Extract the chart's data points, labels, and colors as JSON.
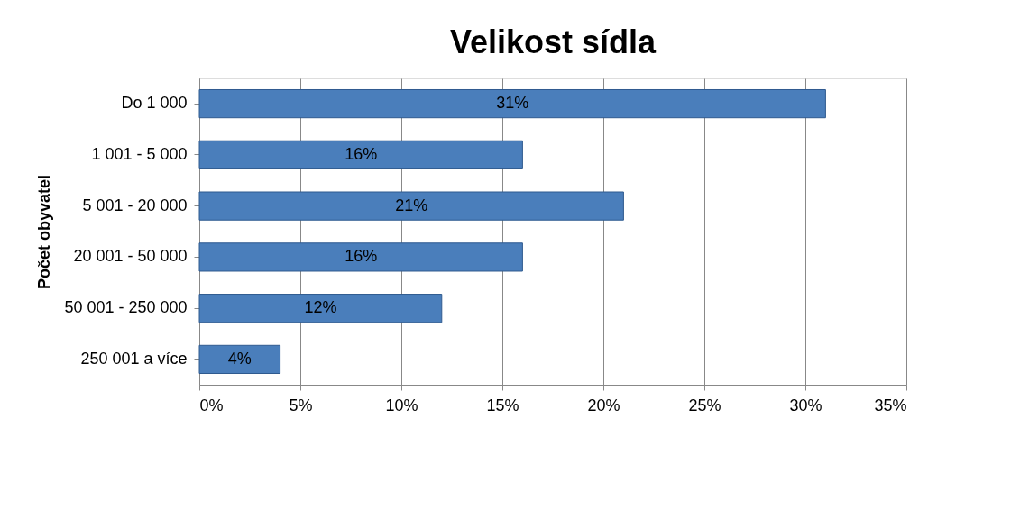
{
  "chart_data": {
    "type": "bar",
    "orientation": "horizontal",
    "title": "Velikost sídla",
    "ylabel": "Počet obyvatel",
    "categories": [
      "Do 1 000",
      "1 001 - 5 000",
      "5 001 - 20 000",
      "20 001 - 50 000",
      "50 001 - 250 000",
      "250 001 a více"
    ],
    "values": [
      31,
      16,
      21,
      16,
      12,
      4
    ],
    "value_labels": [
      "31%",
      "16%",
      "21%",
      "16%",
      "12%",
      "4%"
    ],
    "color": "#4a7ebb",
    "xlim": [
      0,
      35
    ],
    "xticks": [
      {
        "value": 0,
        "label": "0%"
      },
      {
        "value": 5,
        "label": "5%"
      },
      {
        "value": 10,
        "label": "10%"
      },
      {
        "value": 15,
        "label": "15%"
      },
      {
        "value": 20,
        "label": "20%"
      },
      {
        "value": 25,
        "label": "25%"
      },
      {
        "value": 30,
        "label": "30%"
      },
      {
        "value": 35,
        "label": "35%"
      }
    ],
    "grid": "x"
  }
}
